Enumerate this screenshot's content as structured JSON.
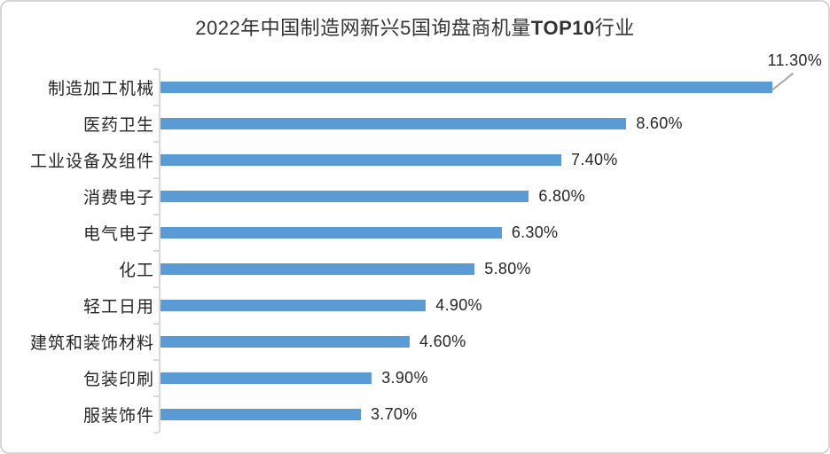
{
  "title": {
    "prefix": "2022年中国制造网新兴5国询盘商机量",
    "highlight": "TOP10",
    "suffix": "行业",
    "color": "#333333"
  },
  "chart_data": {
    "type": "bar",
    "orientation": "horizontal",
    "title": "2022年中国制造网新兴5国询盘商机量TOP10行业",
    "categories": [
      "制造加工机械",
      "医药卫生",
      "工业设备及组件",
      "消费电子",
      "电气电子",
      "化工",
      "轻工日用",
      "建筑和装饰材料",
      "包装印刷",
      "服装饰件"
    ],
    "values": [
      11.3,
      8.6,
      7.4,
      6.8,
      6.3,
      5.8,
      4.9,
      4.6,
      3.9,
      3.7
    ],
    "value_labels": [
      "11.30%",
      "8.60%",
      "7.40%",
      "6.80%",
      "6.30%",
      "5.80%",
      "4.90%",
      "4.60%",
      "3.90%",
      "3.70%"
    ],
    "xlabel": "",
    "ylabel": "",
    "xlim": [
      0,
      12
    ],
    "grid": false,
    "legend": false,
    "first_label_as_callout": true,
    "bar_color": "#5b9bd5",
    "axis_color": "#d9d9d9",
    "tick_color": "#d9d9d9",
    "text_color": "#262626",
    "leader_line_color": "#a6a6a6",
    "frame_border_color": "#d6d6d6",
    "background_color": "#ffffff"
  }
}
